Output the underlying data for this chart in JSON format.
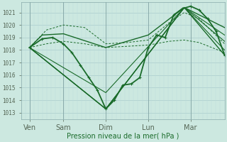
{
  "bg_color": "#cce8e0",
  "grid_major_color": "#aacccc",
  "grid_minor_color": "#bbdddd",
  "line_color": "#1a6b2a",
  "xlabel": "Pression niveau de la mer( hPa )",
  "ylim": [
    1012.5,
    1021.8
  ],
  "xlim": [
    0,
    4.8
  ],
  "yticks": [
    1013,
    1014,
    1015,
    1016,
    1017,
    1018,
    1019,
    1020,
    1021
  ],
  "x_tick_pos": [
    0.2,
    1.0,
    2.0,
    3.0,
    4.0
  ],
  "x_labels": [
    "Ven",
    "Sam",
    "Dim",
    "Lun",
    "Mar"
  ],
  "day_vlines": [
    0.2,
    1.0,
    2.0,
    3.0,
    4.0
  ],
  "lines": [
    {
      "x": [
        0.2,
        0.5,
        0.75,
        1.0,
        1.2,
        1.4,
        1.6,
        1.8,
        2.0,
        2.2,
        2.4,
        2.6,
        2.8,
        3.0,
        3.2,
        3.4,
        3.6,
        3.8,
        4.0,
        4.2,
        4.4,
        4.6,
        4.8
      ],
      "y": [
        1018.2,
        1018.9,
        1019.0,
        1018.5,
        1017.8,
        1016.8,
        1015.8,
        1014.8,
        1013.3,
        1014.0,
        1015.2,
        1015.3,
        1015.8,
        1018.2,
        1019.2,
        1019.0,
        1020.8,
        1021.3,
        1021.5,
        1021.2,
        1020.5,
        1019.5,
        1017.6
      ],
      "style": "-",
      "marker": "+",
      "markersize": 3,
      "lw": 1.3
    },
    {
      "x": [
        0.2,
        2.0,
        3.85,
        4.8
      ],
      "y": [
        1018.2,
        1013.3,
        1021.4,
        1017.6
      ],
      "style": "-",
      "marker": null,
      "lw": 1.0
    },
    {
      "x": [
        0.2,
        0.5,
        1.0,
        2.0,
        3.0,
        3.85,
        4.8
      ],
      "y": [
        1018.2,
        1019.2,
        1019.3,
        1018.2,
        1019.2,
        1021.4,
        1019.8
      ],
      "style": "-",
      "marker": null,
      "lw": 1.0
    },
    {
      "x": [
        0.2,
        2.0,
        3.85,
        4.8
      ],
      "y": [
        1018.2,
        1013.3,
        1021.4,
        1019.2
      ],
      "style": "-",
      "marker": null,
      "lw": 0.8
    },
    {
      "x": [
        0.2,
        2.0,
        3.85,
        4.8
      ],
      "y": [
        1018.2,
        1013.3,
        1021.4,
        1018.7
      ],
      "style": "-",
      "marker": null,
      "lw": 0.8
    },
    {
      "x": [
        0.2,
        2.0,
        3.85,
        4.8
      ],
      "y": [
        1018.2,
        1014.6,
        1021.4,
        1018.0
      ],
      "style": "-",
      "marker": null,
      "lw": 0.8
    },
    {
      "x": [
        0.2,
        0.6,
        1.0,
        1.5,
        2.0,
        2.5,
        3.0,
        3.5,
        3.85,
        4.2,
        4.8
      ],
      "y": [
        1018.2,
        1019.6,
        1020.0,
        1019.8,
        1018.5,
        1018.6,
        1018.8,
        1020.2,
        1021.0,
        1020.5,
        1018.5
      ],
      "style": "--",
      "marker": null,
      "lw": 0.7
    },
    {
      "x": [
        0.2,
        0.6,
        1.0,
        1.5,
        2.0,
        2.5,
        3.0,
        3.5,
        3.85,
        4.2,
        4.8
      ],
      "y": [
        1018.2,
        1018.5,
        1018.7,
        1018.5,
        1018.2,
        1018.3,
        1018.4,
        1018.7,
        1018.8,
        1018.6,
        1017.8
      ],
      "style": "--",
      "marker": null,
      "lw": 0.7
    }
  ]
}
